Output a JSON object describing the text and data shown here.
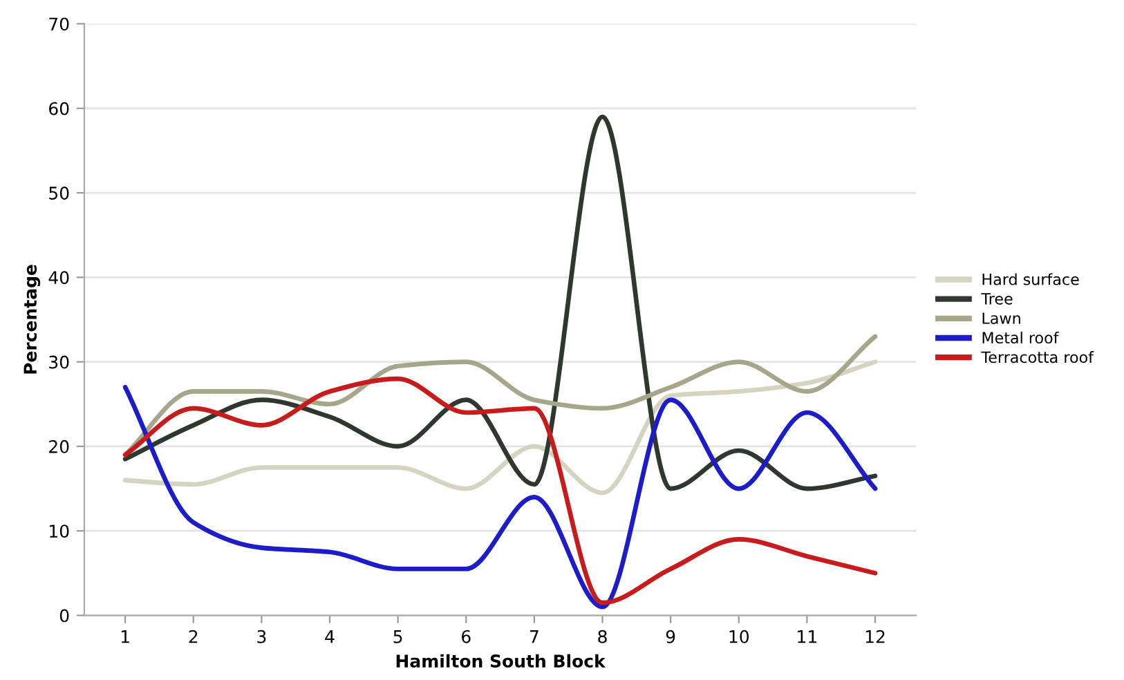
{
  "chart_data": {
    "type": "line",
    "xlabel": "Hamilton South Block",
    "ylabel": "Percentage",
    "categories": [
      "1",
      "2",
      "3",
      "4",
      "5",
      "6",
      "7",
      "8",
      "9",
      "10",
      "11",
      "12"
    ],
    "series": [
      {
        "name": "Hard surface",
        "color": "#d4d4c0",
        "values": [
          16,
          15.5,
          17.5,
          17.5,
          17.5,
          15,
          20,
          14.5,
          26,
          26.5,
          27.5,
          30
        ]
      },
      {
        "name": "Tree",
        "color": "#2e382e",
        "values": [
          18.5,
          22.5,
          25.5,
          23.5,
          20,
          25.5,
          15.5,
          59,
          15,
          19.5,
          15,
          16.5
        ]
      },
      {
        "name": "Lawn",
        "color": "#a6a68a",
        "values": [
          19,
          26.5,
          26.5,
          25,
          29.5,
          30,
          25.5,
          24.5,
          27,
          30,
          26.5,
          33
        ]
      },
      {
        "name": "Metal roof",
        "color": "#1c1cc8",
        "values": [
          27,
          11,
          8,
          7.5,
          5.5,
          5.5,
          14,
          1,
          25.5,
          15,
          24,
          15
        ]
      },
      {
        "name": "Terracotta roof",
        "color": "#c81c1c",
        "values": [
          19,
          24.5,
          22.5,
          26.5,
          28,
          24,
          24.5,
          1.5,
          5.5,
          9,
          7,
          5
        ]
      }
    ],
    "ylim": [
      0,
      70
    ],
    "yticks": [
      0,
      10,
      20,
      30,
      40,
      50,
      60,
      70
    ],
    "grid": "y",
    "legend": "right",
    "marker": "none",
    "line_style": "solid"
  }
}
